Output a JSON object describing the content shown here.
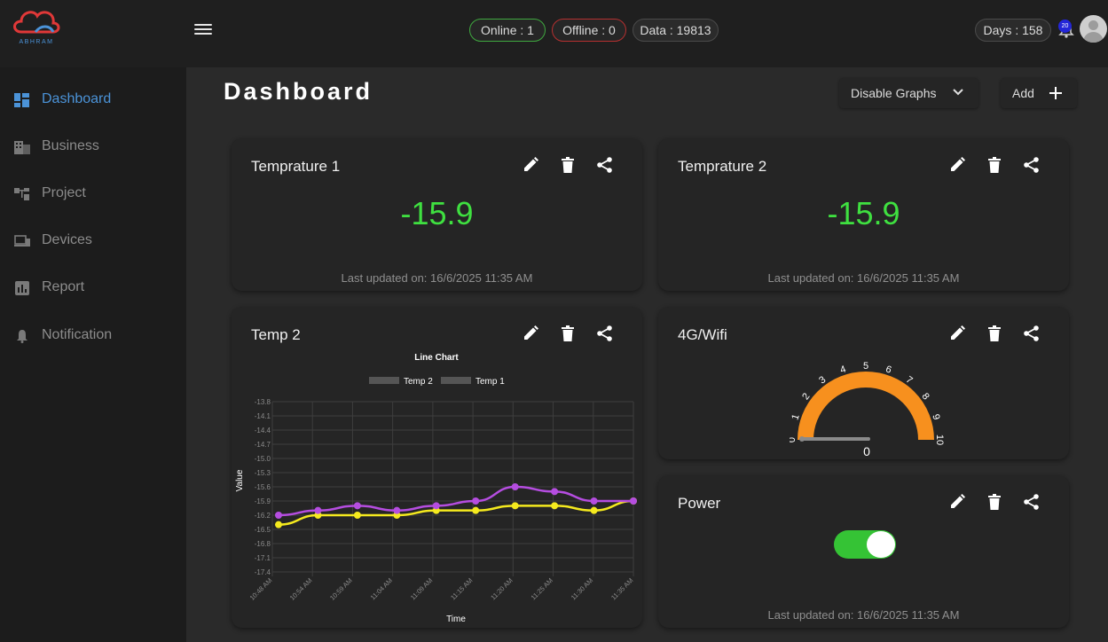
{
  "brand": {
    "logo_text": "ABHRAM"
  },
  "header": {
    "online_label": "Online  :  1",
    "offline_label": "Offline : 0",
    "data_label": "Data : 19813",
    "days_label": "Days : 158",
    "notification_count": "20"
  },
  "sidebar": {
    "items": [
      {
        "label": "Dashboard",
        "icon": "dashboard-icon"
      },
      {
        "label": "Business",
        "icon": "business-icon"
      },
      {
        "label": "Project",
        "icon": "project-icon"
      },
      {
        "label": "Devices",
        "icon": "devices-icon"
      },
      {
        "label": "Report",
        "icon": "report-icon"
      },
      {
        "label": "Notification",
        "icon": "notification-icon"
      }
    ]
  },
  "main": {
    "title": "Dashboard",
    "disable_graphs_label": "Disable Graphs",
    "add_label": "Add"
  },
  "cards": {
    "temp1": {
      "title": "Temprature 1",
      "value": "-15.9",
      "updated": "Last updated on: 16/6/2025 11:35 AM"
    },
    "temp2": {
      "title": "Temprature 2",
      "value": "-15.9",
      "updated": "Last updated on: 16/6/2025 11:35 AM"
    },
    "chart": {
      "title": "Temp 2"
    },
    "wifi": {
      "title": "4G/Wifi",
      "gauge_value": "0",
      "gauge_ticks": [
        "0",
        "1",
        "2",
        "3",
        "4",
        "5",
        "6",
        "7",
        "8",
        "9",
        "10"
      ]
    },
    "power": {
      "title": "Power",
      "state": "on",
      "updated": "Last updated on: 16/6/2025 11:35 AM"
    }
  },
  "colors": {
    "accent": "#4b93d8",
    "value_green": "#3fe040",
    "series_temp2": "#f5ea1e",
    "series_temp1": "#b54de0",
    "gauge": "#f7901e",
    "toggle_on": "#35c335"
  },
  "chart_data": {
    "type": "line",
    "title": "Line Chart",
    "xlabel": "Time",
    "ylabel": "Value",
    "legend_placement": "top",
    "grid": true,
    "y_ticks": [
      "-13.8",
      "-14.1",
      "-14.4",
      "-14.7",
      "-15.0",
      "-15.3",
      "-15.6",
      "-15.9",
      "-16.2",
      "-16.5",
      "-16.8",
      "-17.1",
      "-17.4"
    ],
    "ylim": [
      -17.4,
      -13.8
    ],
    "x_ticks": [
      "10:48 AM",
      "10:54 AM",
      "10:59 AM",
      "11:04 AM",
      "11:09 AM",
      "11:15 AM",
      "11:20 AM",
      "11:25 AM",
      "11:30 AM",
      "11:35 AM"
    ],
    "x": [
      "10:48 AM",
      "10:53 AM",
      "10:58 AM",
      "11:03 AM",
      "11:08 AM",
      "11:13 AM",
      "11:18 AM",
      "11:23 AM",
      "11:28 AM",
      "11:33 AM"
    ],
    "series": [
      {
        "name": "Temp 2",
        "color": "#f5ea1e",
        "values": [
          -16.4,
          -16.2,
          -16.2,
          -16.2,
          -16.1,
          -16.1,
          -16.0,
          -16.0,
          -16.1,
          -15.9
        ]
      },
      {
        "name": "Temp 1",
        "color": "#b54de0",
        "values": [
          -16.2,
          -16.1,
          -16.0,
          -16.1,
          -16.0,
          -15.9,
          -15.6,
          -15.7,
          -15.9,
          -15.9
        ]
      }
    ]
  }
}
